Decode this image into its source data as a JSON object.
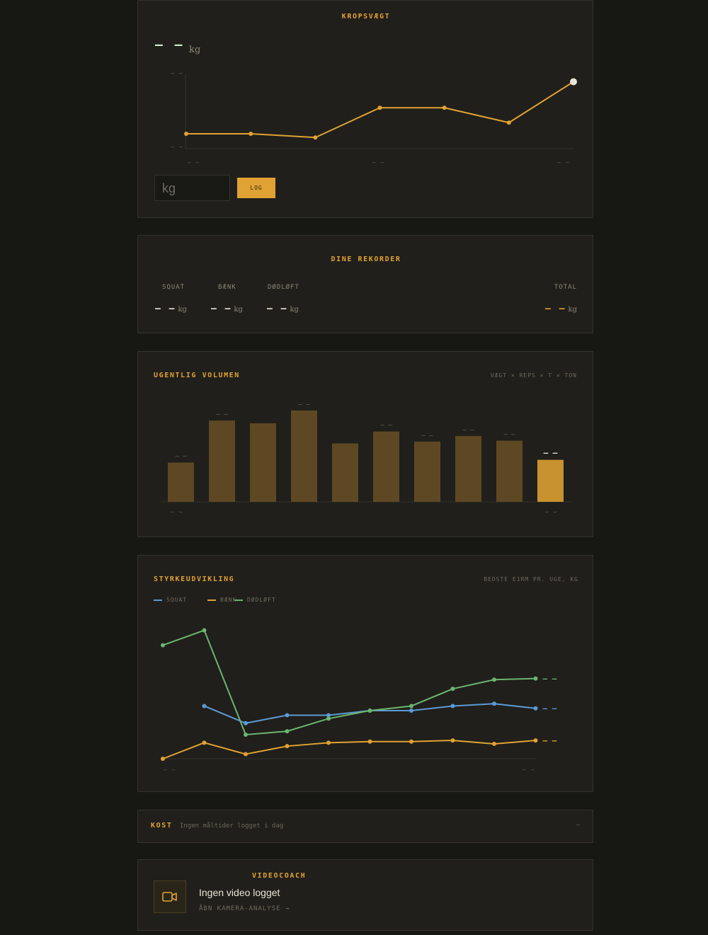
{
  "bodyweight": {
    "title": "KROPSVÆGT",
    "current": "– –",
    "unit": "kg",
    "y_top": "– –",
    "y_bottom": "– –",
    "x_labels": [
      "– –",
      "– –",
      "– –"
    ],
    "input_placeholder": "kg",
    "log_label": "LOG",
    "chart_data": {
      "type": "line",
      "series": [
        {
          "values": [
            0.2,
            0.2,
            0.15,
            0.55,
            0.55,
            0.35,
            0.9
          ]
        }
      ],
      "ylim": [
        0,
        1
      ]
    }
  },
  "records": {
    "title": "DINE REKORDER",
    "items": [
      {
        "label": "SQUAT",
        "value": "– –",
        "unit": "kg"
      },
      {
        "label": "BÆNK",
        "value": "– –",
        "unit": "kg"
      },
      {
        "label": "DØDLØFT",
        "value": "– –",
        "unit": "kg"
      }
    ],
    "total": {
      "label": "TOTAL",
      "value": "– –",
      "unit": "kg"
    }
  },
  "volume": {
    "title": "UGENTLIG VOLUMEN",
    "subtitle": "VÆGT × REPS × T × TON",
    "axis_left": "– –",
    "axis_right": "– –",
    "chart_data": {
      "type": "bar",
      "values": [
        0.43,
        0.89,
        0.86,
        1.0,
        0.64,
        0.77,
        0.66,
        0.72,
        0.67,
        0.46
      ],
      "value_labels": [
        "– –",
        "– –",
        "",
        "– –",
        "",
        "– –",
        "– –",
        "– –",
        "– –",
        "– –"
      ],
      "ylim": [
        0,
        1
      ]
    }
  },
  "strength": {
    "title": "STYRKEUDVIKLING",
    "subtitle": "BEDSTE E1RM PR. UGE, KG",
    "axis_left": "– –",
    "axis_right": "– –",
    "chart_data": {
      "type": "line",
      "series": [
        {
          "name": "SQUAT",
          "color": "#5b9bd5",
          "values": [
            null,
            0.46,
            0.31,
            0.38,
            0.38,
            0.42,
            0.42,
            0.46,
            0.48,
            0.44
          ],
          "end_label": "– –"
        },
        {
          "name": "BÆNK",
          "color": "#e0a232",
          "values": [
            0.0,
            0.14,
            0.04,
            0.11,
            0.14,
            0.15,
            0.15,
            0.16,
            0.13,
            0.16
          ],
          "end_label": "– –"
        },
        {
          "name": "DØDLØFT",
          "color": "#6bb56f",
          "values": [
            0.99,
            1.12,
            0.21,
            0.24,
            0.35,
            0.42,
            0.46,
            0.61,
            0.69,
            0.7
          ],
          "end_label": "– –"
        }
      ],
      "ylim": [
        0,
        1.12
      ]
    }
  },
  "diet": {
    "title": "KOST",
    "status": "Ingen måltider logget i dag",
    "value": "–"
  },
  "videocoach": {
    "title": "VIDEOCOACH",
    "heading": "Ingen video logget",
    "link": "ÅBN KAMERA-ANALYSE →",
    "icon": "video-camera-icon"
  }
}
